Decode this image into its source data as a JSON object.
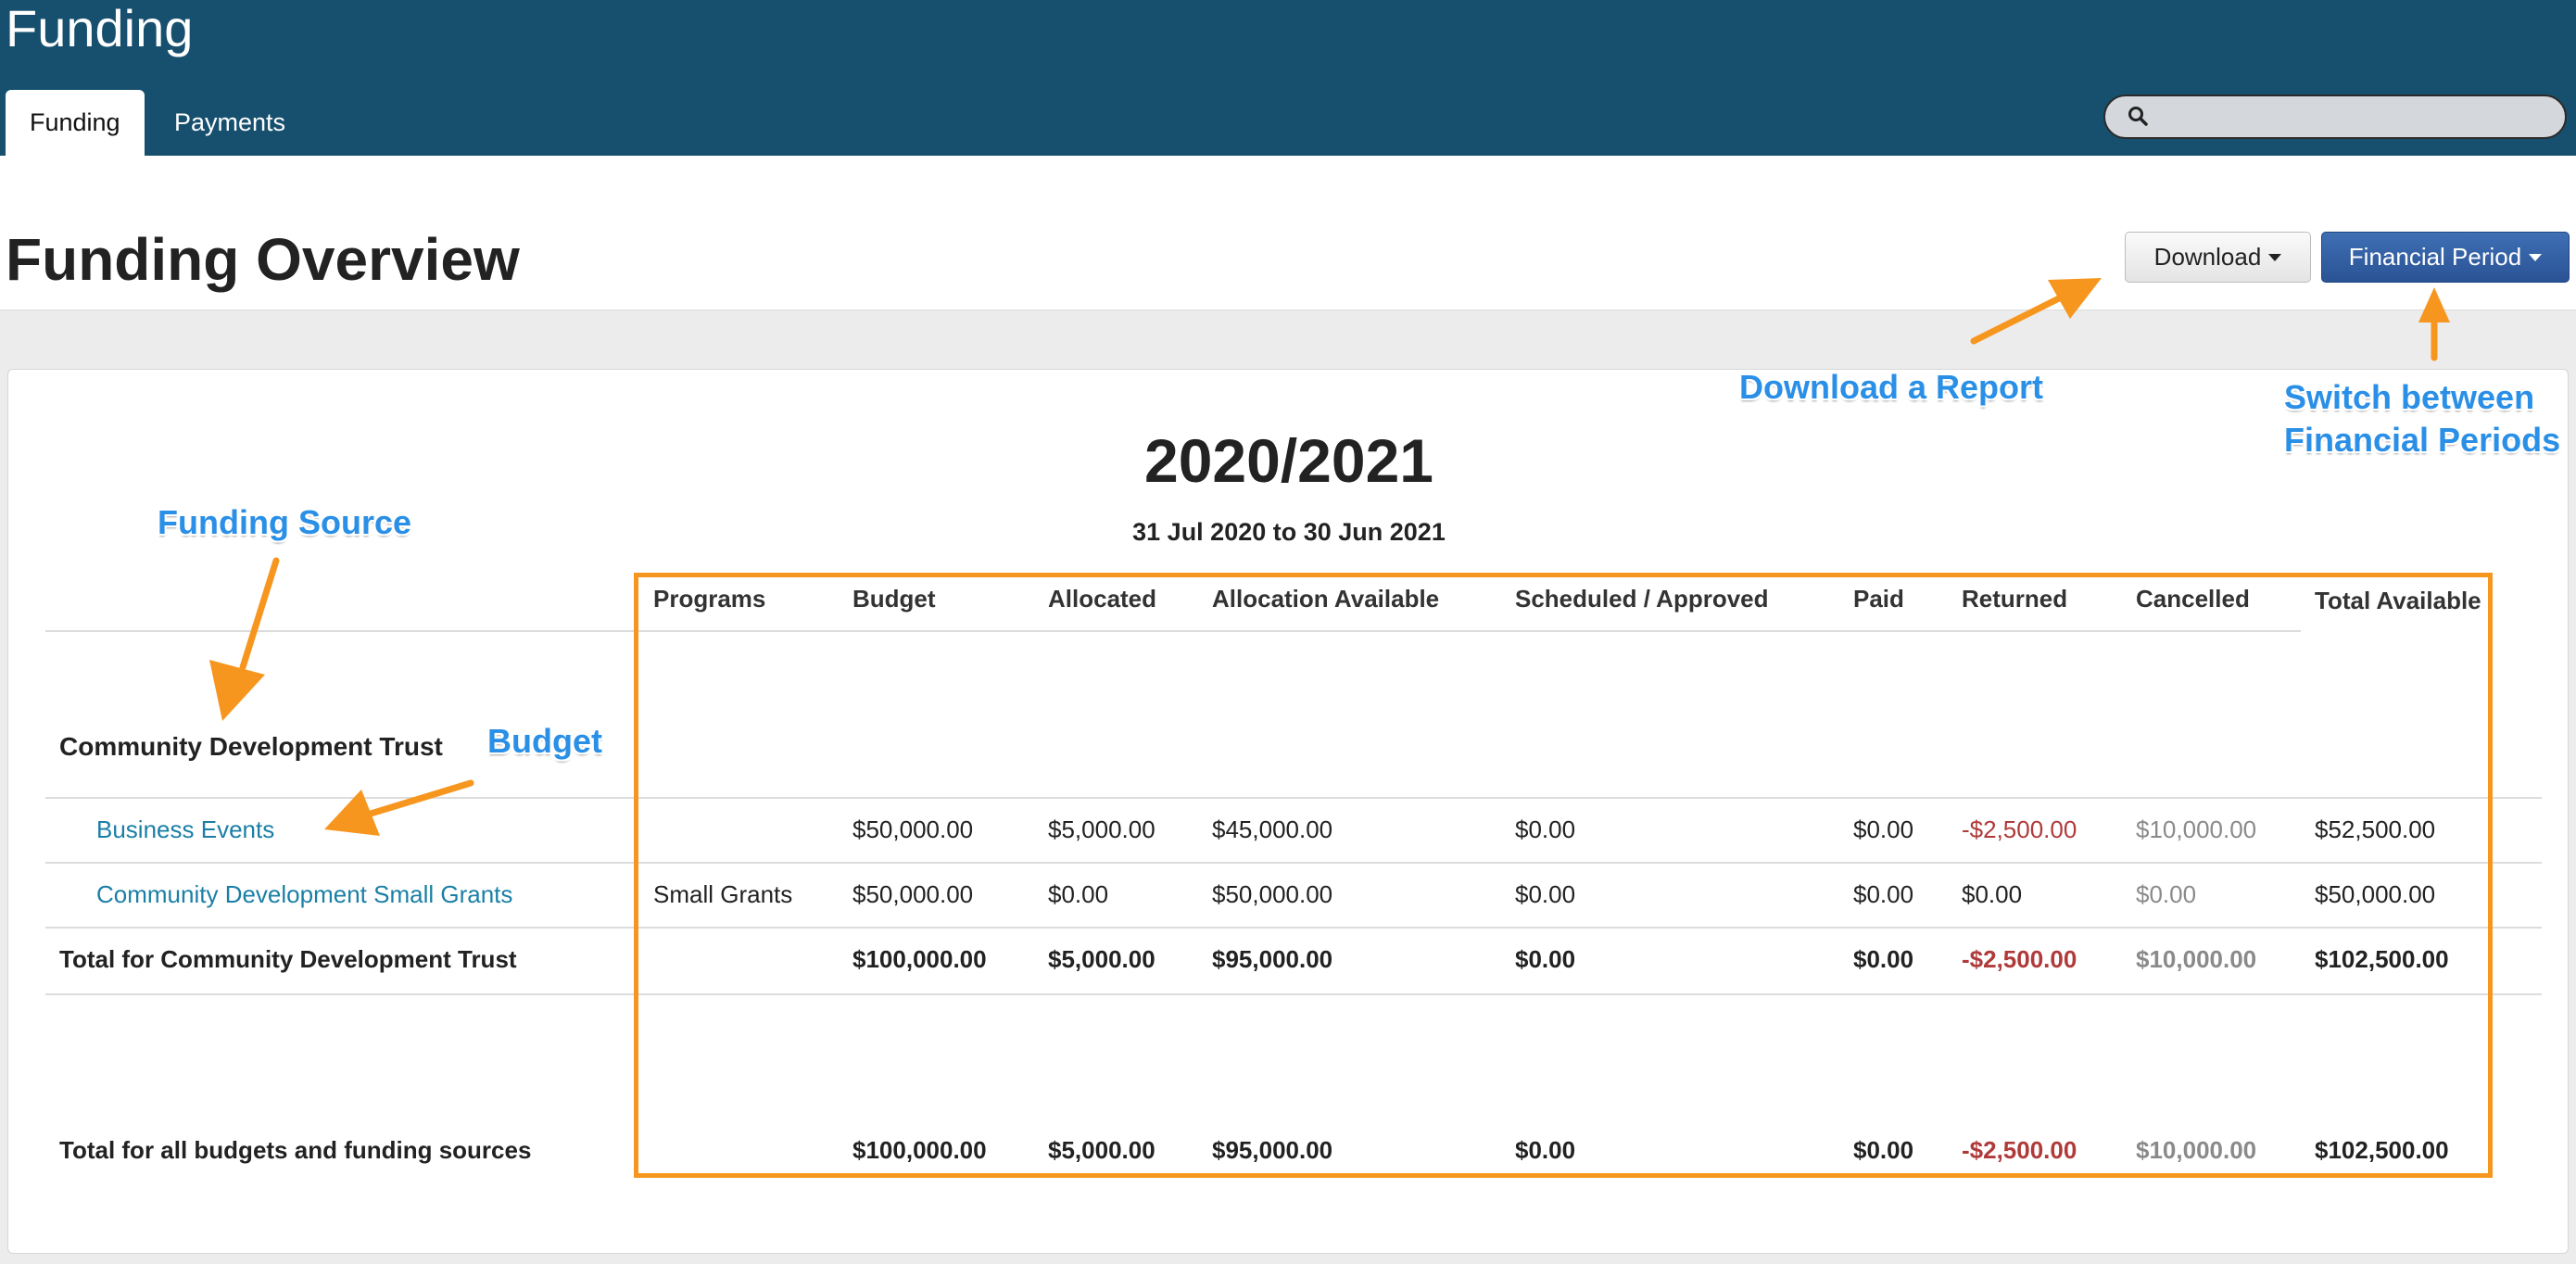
{
  "app": {
    "title": "Funding",
    "tabs": [
      {
        "label": "Funding",
        "active": true
      },
      {
        "label": "Payments",
        "active": false
      }
    ],
    "search_placeholder": ""
  },
  "header": {
    "title": "Funding Overview",
    "download_label": "Download",
    "period_label": "Financial Period"
  },
  "report": {
    "period_title": "2020/2021",
    "period_range": "31 Jul 2020 to 30 Jun 2021",
    "columns": [
      "Programs",
      "Budget",
      "Allocated",
      "Allocation Available",
      "Scheduled / Approved",
      "Paid",
      "Returned",
      "Cancelled",
      "Total Available"
    ],
    "source_name": "Community Development Trust",
    "rows": [
      {
        "name": "Business Events",
        "program": "",
        "budget": "$50,000.00",
        "allocated": "$5,000.00",
        "available": "$45,000.00",
        "scheduled": "$0.00",
        "paid": "$0.00",
        "returned": "-$2,500.00",
        "cancelled": "$10,000.00",
        "total": "$52,500.00"
      },
      {
        "name": "Community Development Small Grants",
        "program": "Small Grants",
        "budget": "$50,000.00",
        "allocated": "$0.00",
        "available": "$50,000.00",
        "scheduled": "$0.00",
        "paid": "$0.00",
        "returned": "$0.00",
        "cancelled": "$0.00",
        "total": "$50,000.00"
      }
    ],
    "source_total": {
      "label": "Total for Community Development Trust",
      "budget": "$100,000.00",
      "allocated": "$5,000.00",
      "available": "$95,000.00",
      "scheduled": "$0.00",
      "paid": "$0.00",
      "returned": "-$2,500.00",
      "cancelled": "$10,000.00",
      "total": "$102,500.00"
    },
    "grand_total": {
      "label": "Total for all budgets and funding sources",
      "budget": "$100,000.00",
      "allocated": "$5,000.00",
      "available": "$95,000.00",
      "scheduled": "$0.00",
      "paid": "$0.00",
      "returned": "-$2,500.00",
      "cancelled": "$10,000.00",
      "total": "$102,500.00"
    }
  },
  "annotations": {
    "download_report": "Download a Report",
    "switch_periods_line1": "Switch between",
    "switch_periods_line2": "Financial Periods",
    "funding_source": "Funding Source",
    "budget": "Budget"
  },
  "colors": {
    "topbar": "#16506e",
    "link": "#1a7fa6",
    "negative": "#b03a3a",
    "muted": "#8a8a8a",
    "annotation_text": "#2a8fe6",
    "annotation_arrow": "#f7961f",
    "primary_button": "#2a5395"
  }
}
